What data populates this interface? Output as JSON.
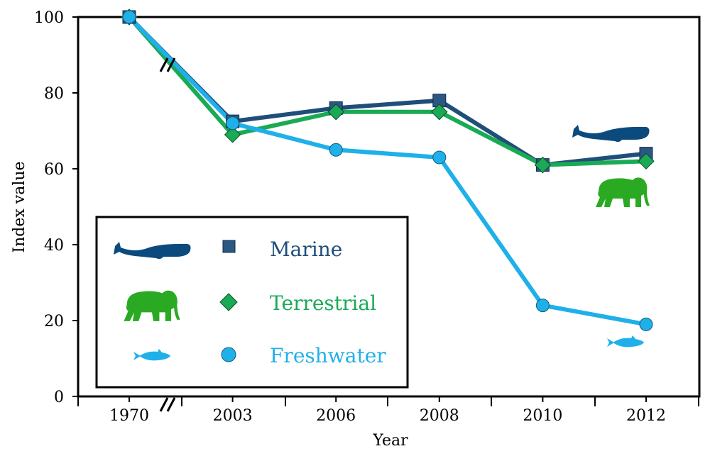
{
  "chart_data": {
    "type": "line",
    "title": "",
    "xlabel": "Year",
    "ylabel": "Index value",
    "categories": [
      "1970",
      "2003",
      "2006",
      "2008",
      "2010",
      "2012"
    ],
    "ylim": [
      0,
      100
    ],
    "yticks": [
      0,
      20,
      40,
      60,
      80,
      100
    ],
    "grid": false,
    "axis_break": "between 1970 and 2003",
    "legend_position": "bottom-left",
    "series": [
      {
        "name": "Marine",
        "marker": "square",
        "color": "#1f4e79",
        "icon": "whale-icon",
        "values": [
          100,
          72.5,
          76,
          78,
          61,
          64
        ]
      },
      {
        "name": "Terrestrial",
        "marker": "diamond",
        "color": "#1aaa55",
        "icon": "elephant-icon",
        "values": [
          100,
          69,
          75,
          75,
          61,
          62
        ]
      },
      {
        "name": "Freshwater",
        "marker": "circle",
        "color": "#1fb0ea",
        "icon": "fish-icon",
        "values": [
          100,
          72,
          65,
          63,
          24,
          19
        ]
      }
    ]
  }
}
